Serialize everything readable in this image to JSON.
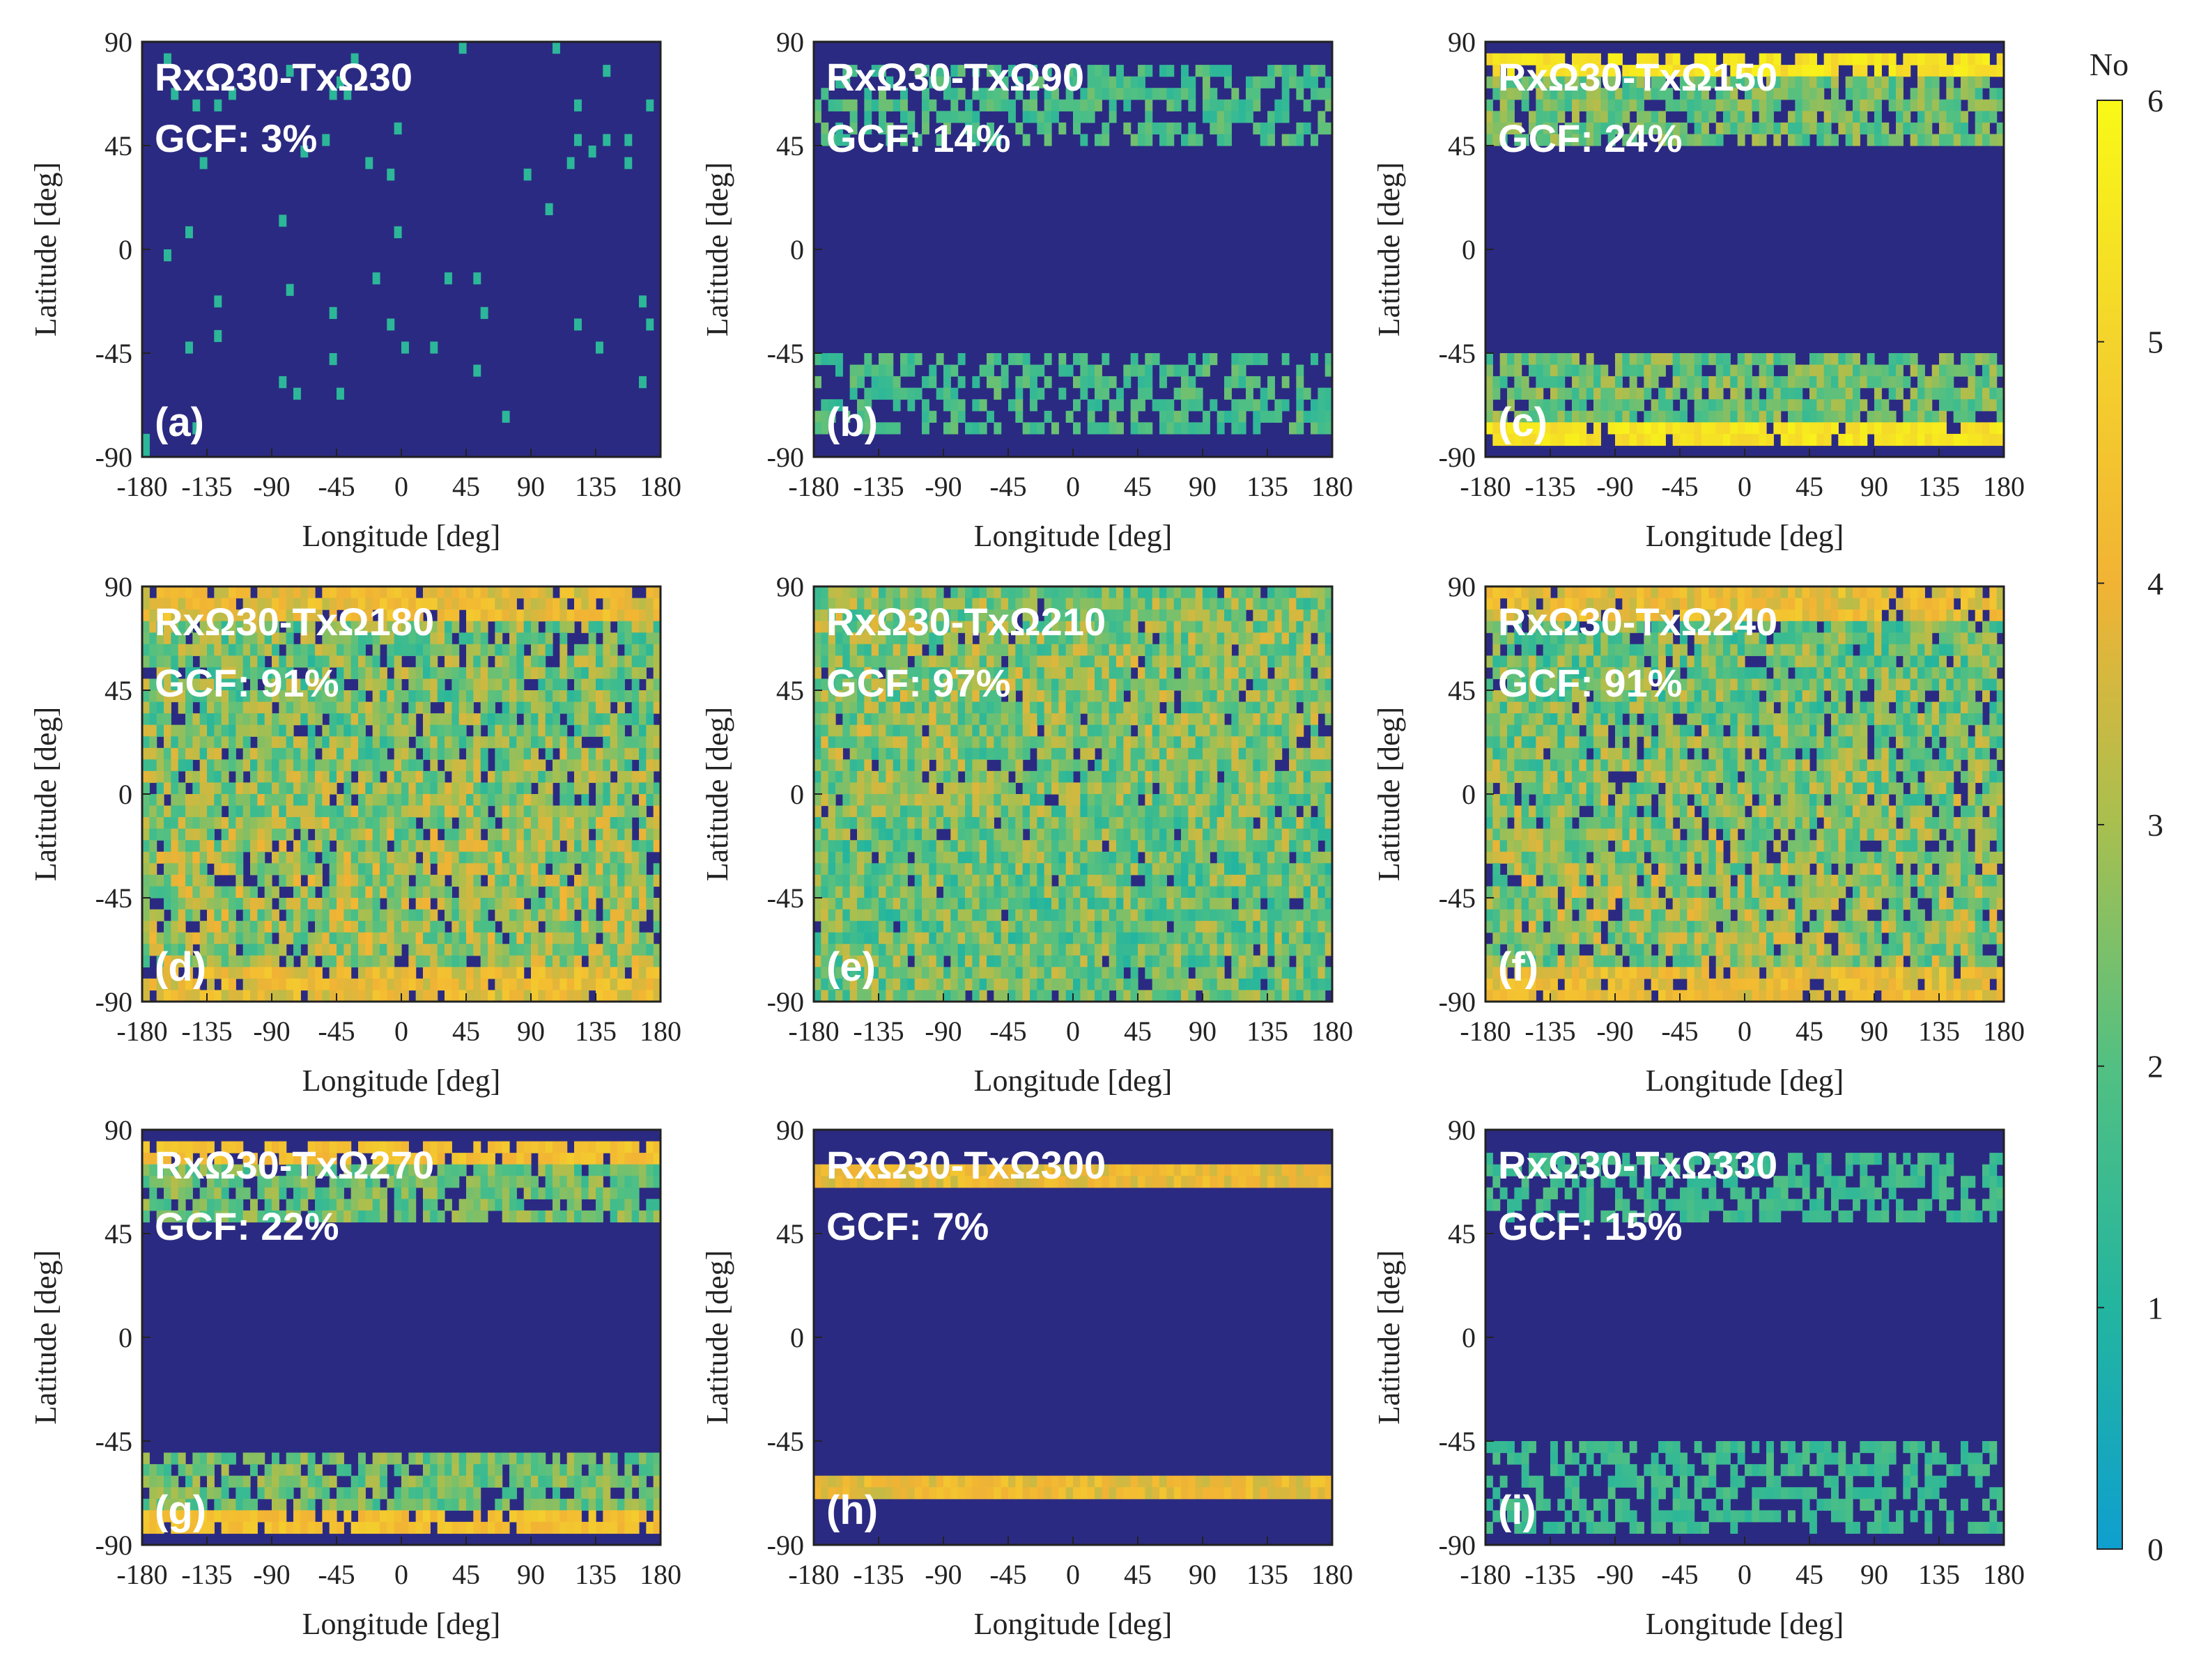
{
  "chart_data": {
    "type": "heatmap",
    "description_units": "number of visible transmitters per grid cell",
    "x": {
      "label": "Longitude [deg]",
      "range": [
        -180,
        180
      ],
      "ticks": [
        -180,
        -135,
        -90,
        -45,
        0,
        45,
        90,
        135,
        180
      ],
      "tick_labels": [
        "-180",
        "-135",
        "-90",
        "-45",
        "0",
        "45",
        "90",
        "135",
        "180"
      ]
    },
    "y": {
      "label": "Latitude [deg]",
      "range": [
        -90,
        90
      ],
      "ticks": [
        90,
        45,
        0,
        -45,
        -90
      ],
      "tick_labels": [
        "90",
        "45",
        "0",
        "-45",
        "-90"
      ]
    },
    "colorbar": {
      "title": "No",
      "range": [
        0,
        6
      ],
      "ticks": [
        "0",
        "1",
        "2",
        "3",
        "4",
        "5",
        "6"
      ],
      "colors": [
        "#0f9fcf",
        "#23b59f",
        "#52c082",
        "#a8bf4f",
        "#f2b334",
        "#f4d42c",
        "#f9f916"
      ],
      "zero_color": "#2b2a82"
    },
    "panels": [
      {
        "letter": "(a)",
        "title": "RxΩ30-TxΩ30",
        "gcf": "GCF: 3%",
        "gcf_value": 3,
        "pattern": "sparse"
      },
      {
        "letter": "(b)",
        "title": "RxΩ30-TxΩ90",
        "gcf": "GCF: 14%",
        "gcf_value": 14,
        "pattern": "band",
        "bands": [
          [
            47,
            82
          ],
          [
            -82,
            -47
          ]
        ],
        "peak": 2.2
      },
      {
        "letter": "(c)",
        "title": "RxΩ30-TxΩ150",
        "gcf": "GCF: 24%",
        "gcf_value": 24,
        "pattern": "band",
        "bands": [
          [
            47,
            83
          ],
          [
            -84,
            -46
          ]
        ],
        "peak": 5.0
      },
      {
        "letter": "(d)",
        "title": "RxΩ30-TxΩ180",
        "gcf": "GCF: 91%",
        "gcf_value": 91,
        "pattern": "full",
        "mean": 2.6
      },
      {
        "letter": "(e)",
        "title": "RxΩ30-TxΩ210",
        "gcf": "GCF: 97%",
        "gcf_value": 97,
        "pattern": "full",
        "mean": 2.4
      },
      {
        "letter": "(f)",
        "title": "RxΩ30-TxΩ240",
        "gcf": "GCF: 91%",
        "gcf_value": 91,
        "pattern": "full",
        "mean": 2.5
      },
      {
        "letter": "(g)",
        "title": "RxΩ30-TxΩ270",
        "gcf": "GCF: 22%",
        "gcf_value": 22,
        "pattern": "band",
        "bands": [
          [
            48,
            83
          ],
          [
            -84,
            -48
          ]
        ],
        "peak": 4.0
      },
      {
        "letter": "(h)",
        "title": "RxΩ30-TxΩ300",
        "gcf": "GCF: 7%",
        "gcf_value": 7,
        "pattern": "band",
        "bands": [
          [
            64,
            73
          ],
          [
            -70,
            -61
          ]
        ],
        "peak": 4.0
      },
      {
        "letter": "(i)",
        "title": "RxΩ30-TxΩ330",
        "gcf": "GCF: 15%",
        "gcf_value": 15,
        "pattern": "band",
        "bands": [
          [
            48,
            82
          ],
          [
            -84,
            -46
          ]
        ],
        "peak": 1.8
      }
    ]
  }
}
